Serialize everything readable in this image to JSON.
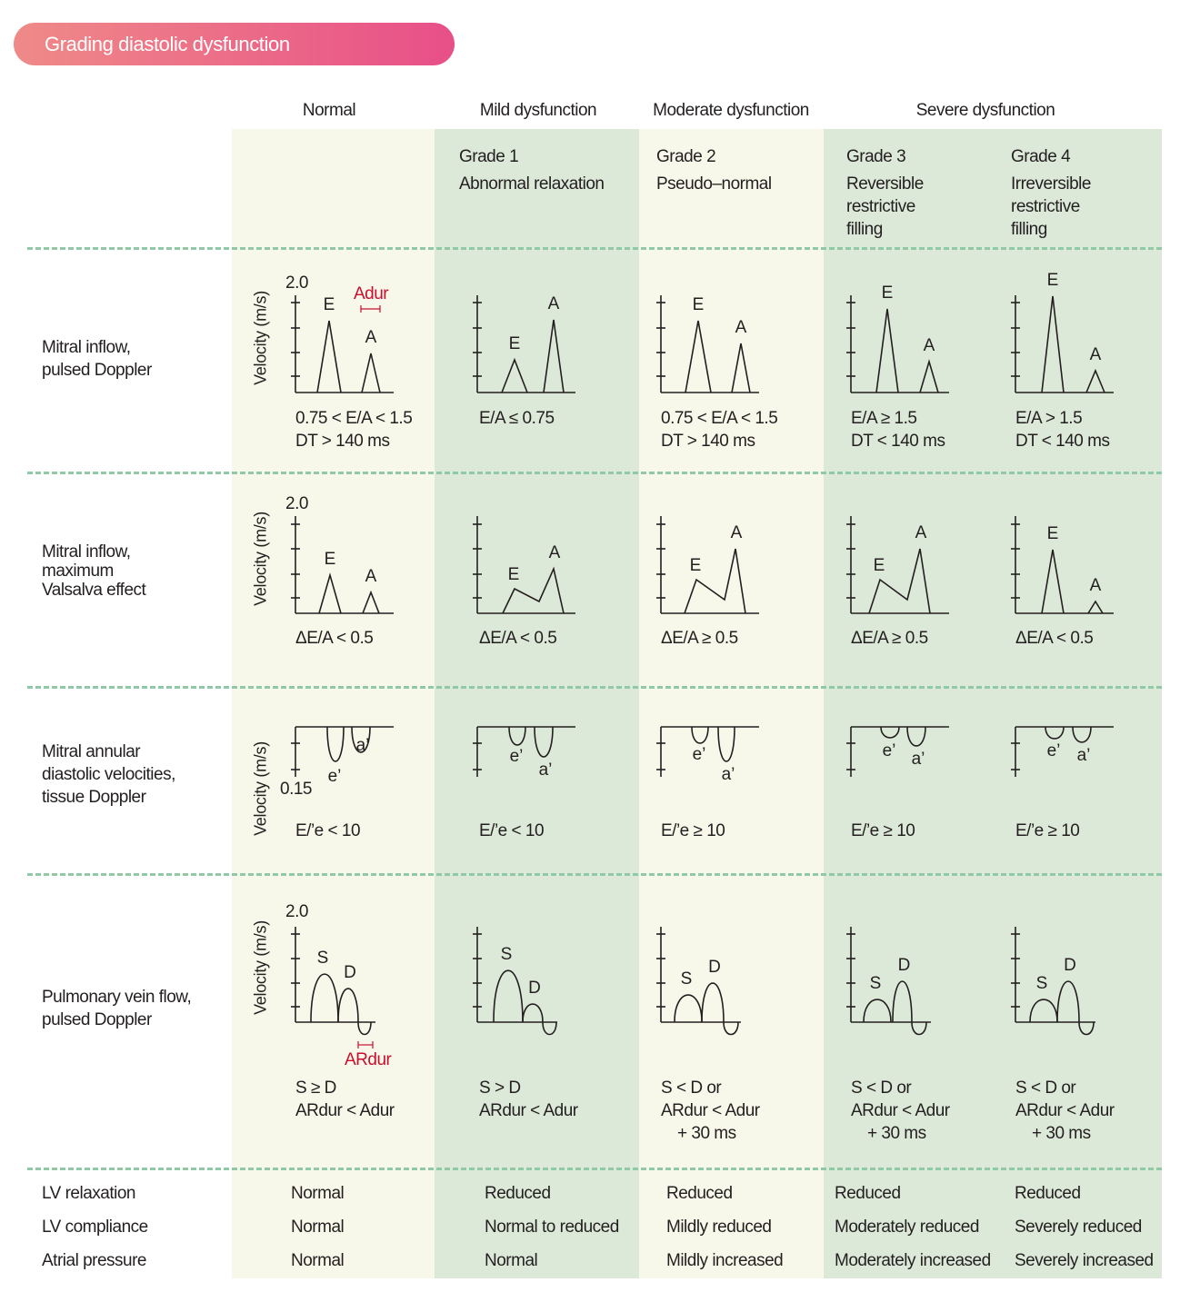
{
  "title": "Grading diastolic dysfunction",
  "headers": [
    "Normal",
    "Mild dysfunction",
    "Moderate dysfunction",
    "Severe dysfunction"
  ],
  "grades": [
    [
      "Grade 1",
      "Abnormal relaxation"
    ],
    [
      "Grade 2",
      "Pseudo–normal"
    ],
    [
      "Grade 3",
      "Reversible",
      "restrictive",
      "filling"
    ],
    [
      "Grade 4",
      "Irreversible",
      "restrictive",
      "filling"
    ]
  ],
  "axis": {
    "label": "Velocity (m/s)",
    "max": "2.0",
    "min": "0.15"
  },
  "colors": {
    "accent_start": "#ef8a88",
    "accent_end": "#e84f88",
    "annotation": "#c8102e",
    "divider": "#90c9a6"
  },
  "rows": {
    "mitral": {
      "label": [
        "Mitral inflow,",
        "pulsed Doppler"
      ],
      "annotation": "Adur",
      "waves": [
        "E",
        "A"
      ],
      "criteria": [
        [
          "0.75 < E/A < 1.5",
          "DT > 140 ms"
        ],
        [
          "E/A ≤ 0.75"
        ],
        [
          "0.75 < E/A < 1.5",
          "DT > 140 ms"
        ],
        [
          "E/A ≥ 1.5",
          "DT < 140 ms"
        ],
        [
          "E/A > 1.5",
          "DT < 140 ms"
        ]
      ]
    },
    "valsalva": {
      "label": [
        "Mitral inflow,",
        "maximum",
        "Valsalva effect"
      ],
      "waves": [
        "E",
        "A"
      ],
      "criteria": [
        [
          "ΔE/A < 0.5"
        ],
        [
          "ΔE/A < 0.5"
        ],
        [
          "ΔE/A ≥ 0.5"
        ],
        [
          "ΔE/A ≥ 0.5"
        ],
        [
          "ΔE/A < 0.5"
        ]
      ]
    },
    "tissue": {
      "label": [
        "Mitral annular",
        "diastolic velocities,",
        "tissue Doppler"
      ],
      "waves": [
        "e’",
        "a’"
      ],
      "criteria": [
        [
          "E/’e < 10"
        ],
        [
          "E/’e < 10"
        ],
        [
          "E/’e ≥ 10"
        ],
        [
          "E/’e ≥ 10"
        ],
        [
          "E/’e ≥ 10"
        ]
      ]
    },
    "pulmonary": {
      "label": [
        "Pulmonary vein flow,",
        "pulsed Doppler"
      ],
      "annotation": "ARdur",
      "waves": [
        "S",
        "D"
      ],
      "criteria": [
        [
          "S ≥ D",
          "ARdur < Adur"
        ],
        [
          "S > D",
          "ARdur < Adur"
        ],
        [
          "S < D or",
          "ARdur < Adur",
          "+ 30 ms"
        ],
        [
          "S < D or",
          "ARdur < Adur",
          "+ 30 ms"
        ],
        [
          "S < D or",
          "ARdur < Adur",
          "+ 30 ms"
        ]
      ]
    }
  },
  "summary": [
    {
      "label": "LV relaxation",
      "values": [
        "Normal",
        "Reduced",
        "Reduced",
        "Reduced",
        "Reduced"
      ]
    },
    {
      "label": "LV compliance",
      "values": [
        "Normal",
        "Normal to reduced",
        "Mildly reduced",
        "Moderately reduced",
        "Severely reduced"
      ]
    },
    {
      "label": "Atrial pressure",
      "values": [
        "Normal",
        "Normal",
        "Mildly increased",
        "Moderately increased",
        "Severely increased"
      ]
    }
  ]
}
